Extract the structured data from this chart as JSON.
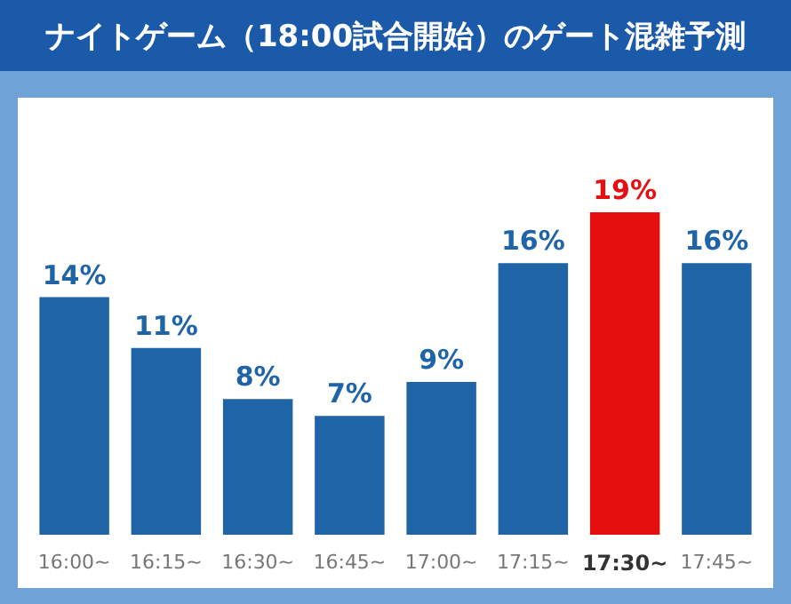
{
  "chart_data": {
    "type": "bar",
    "title": "ナイトゲーム（18:00試合開始）のゲート混雑予測",
    "categories": [
      "16:00~",
      "16:15~",
      "16:30~",
      "16:45~",
      "17:00~",
      "17:15~",
      "17:30~",
      "17:45~"
    ],
    "values": [
      14,
      11,
      8,
      7,
      9,
      16,
      19,
      16
    ],
    "value_labels": [
      "14%",
      "11%",
      "8%",
      "7%",
      "9%",
      "16%",
      "19%",
      "16%"
    ],
    "color": "#1f64a6",
    "colors": [
      "#1f64a6",
      "#1f64a6",
      "#1f64a6",
      "#1f64a6",
      "#1f64a6",
      "#1f64a6",
      "#e60f0f",
      "#1f64a6"
    ]
  }
}
